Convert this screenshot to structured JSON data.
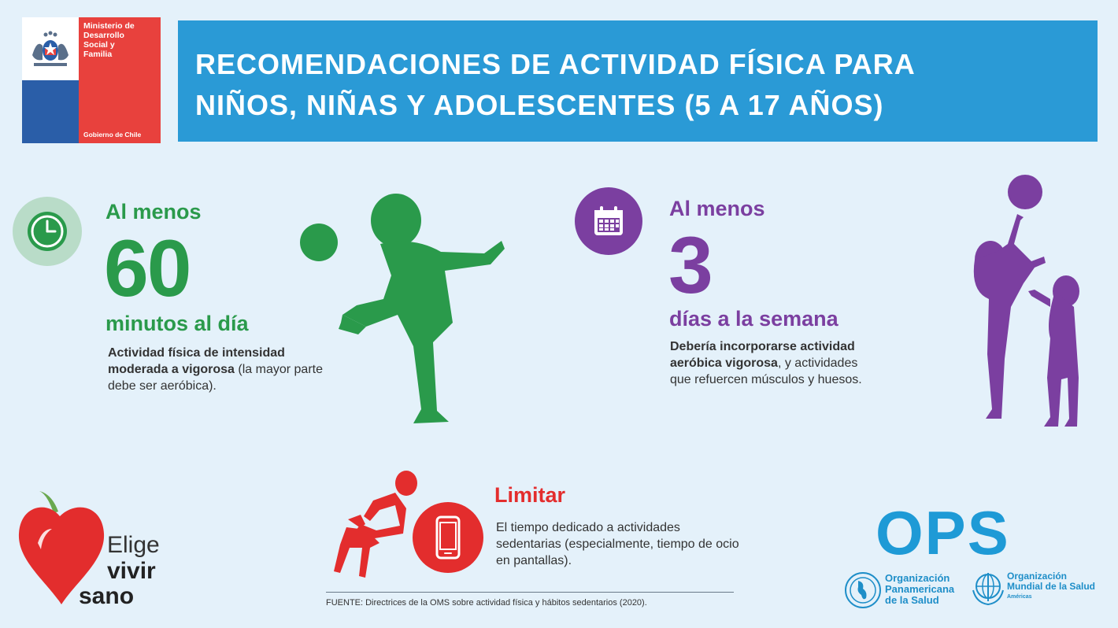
{
  "ministry": {
    "name_lines": [
      "Ministerio de",
      "Desarrollo",
      "Social y",
      "Familia"
    ],
    "government": "Gobierno de Chile"
  },
  "header": {
    "title_line1": "RECOMENDACIONES DE ACTIVIDAD FÍSICA PARA",
    "title_line2": "NIÑOS, NIÑAS Y ADOLESCENTES (5 A 17 AÑOS)"
  },
  "green": {
    "prefix": "Al menos",
    "number": "60",
    "unit": "minutos al día",
    "desc_bold": "Actividad física de intensidad moderada a vigorosa",
    "desc_rest": " (la mayor parte debe ser aeróbica).",
    "icon": "clock-icon",
    "color": "#2a9a4b"
  },
  "purple": {
    "prefix": "Al menos",
    "number": "3",
    "unit": "días a la semana",
    "desc_bold": "Debería incorporarse actividad aeróbica vigorosa",
    "desc_rest": ", y actividades que refuercen músculos y huesos.",
    "icon": "calendar-icon",
    "color": "#7b3fa0"
  },
  "red": {
    "title": "Limitar",
    "desc": "El tiempo dedicado a actividades sedentarias (especialmente, tiempo de ocio en pantallas).",
    "icon": "phone-icon",
    "color": "#e32d2d"
  },
  "source": "FUENTE: Directrices de la OMS sobre actividad física y hábitos sedentarios (2020).",
  "elige": {
    "line1": "Elige",
    "line2": "vivir",
    "line3": "sano"
  },
  "ops": {
    "acronym": "OPS",
    "org1_lines": [
      "Organización",
      "Panamericana",
      "de la Salud"
    ],
    "org2_lines": [
      "Organización",
      "Mundial de la Salud"
    ],
    "org2_region": "Américas"
  }
}
